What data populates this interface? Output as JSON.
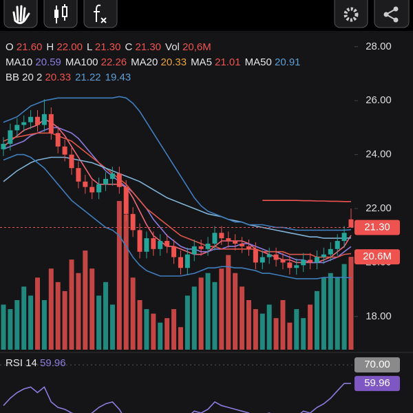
{
  "chart_data": {
    "type": "candlestick",
    "legend_rows": [
      [
        {
          "label": "O",
          "value": "21.60",
          "color": "#ef5350"
        },
        {
          "label": "H",
          "value": "22.00",
          "color": "#ef5350"
        },
        {
          "label": "L",
          "value": "21.30",
          "color": "#ef5350"
        },
        {
          "label": "C",
          "value": "21.30",
          "color": "#ef5350"
        },
        {
          "label": "Vol",
          "value": "20,6M",
          "color": "#ef5350"
        }
      ],
      [
        {
          "label": "MA10",
          "value": "20.59",
          "color": "#8b7de0"
        },
        {
          "label": "MA100",
          "value": "22.26",
          "color": "#ef5350"
        },
        {
          "label": "MA20",
          "value": "20.33",
          "color": "#e8a33a"
        },
        {
          "label": "MA5",
          "value": "21.01",
          "color": "#ef5350"
        },
        {
          "label": "MA50",
          "value": "20.91",
          "color": "#5a9fd6"
        }
      ],
      [
        {
          "label": "BB 20 2",
          "value": "20.33",
          "color": "#ef5350"
        },
        {
          "value": "21.22",
          "color": "#5a9fd6"
        },
        {
          "value": "19.43",
          "color": "#5a9fd6"
        }
      ]
    ],
    "up_color": "#26a69a",
    "down_color": "#ef5350",
    "candles": {
      "open": [
        24.2,
        24.4,
        24.9,
        25.1,
        25.2,
        25.4,
        25.1,
        25.5,
        24.8,
        24.3,
        24.0,
        23.5,
        23.0,
        22.8,
        22.6,
        22.9,
        23.1,
        23.3,
        22.8,
        21.8,
        21.2,
        20.4,
        20.9,
        20.5,
        20.8,
        20.6,
        20.2,
        19.8,
        20.3,
        20.6,
        20.5,
        20.7,
        21.1,
        20.9,
        20.8,
        20.7,
        20.6,
        20.5,
        20.0,
        20.2,
        20.3,
        20.1,
        20.0,
        19.8,
        19.9,
        20.1,
        20.0,
        20.2,
        20.3,
        20.5,
        20.8,
        21.6
      ],
      "high": [
        24.65,
        25.15,
        25.35,
        25.45,
        25.65,
        25.65,
        26.05,
        25.75,
        25.05,
        24.55,
        24.25,
        23.75,
        23.25,
        23.05,
        23.15,
        23.35,
        23.55,
        23.55,
        23.05,
        22.05,
        21.45,
        21.15,
        21.15,
        21.05,
        21.05,
        20.85,
        20.45,
        20.55,
        20.85,
        20.85,
        20.95,
        21.35,
        21.35,
        21.15,
        21.05,
        20.95,
        20.85,
        20.75,
        20.45,
        20.55,
        20.55,
        20.35,
        20.25,
        20.15,
        20.35,
        20.35,
        20.45,
        20.55,
        20.75,
        21.05,
        21.35,
        22.0
      ],
      "low": [
        23.95,
        24.15,
        24.65,
        24.85,
        24.95,
        24.85,
        24.85,
        24.55,
        24.05,
        23.75,
        23.25,
        22.75,
        22.55,
        22.35,
        22.35,
        22.65,
        22.85,
        22.55,
        21.55,
        20.95,
        20.15,
        20.15,
        20.25,
        20.25,
        20.35,
        19.95,
        19.55,
        19.55,
        20.05,
        20.25,
        20.25,
        20.45,
        20.65,
        20.55,
        20.45,
        20.35,
        20.25,
        19.75,
        19.75,
        19.95,
        19.85,
        19.75,
        19.55,
        19.55,
        19.65,
        19.75,
        19.75,
        19.95,
        20.05,
        20.25,
        20.55,
        21.3
      ],
      "close": [
        24.4,
        24.9,
        25.1,
        25.2,
        25.4,
        25.1,
        25.5,
        24.8,
        24.3,
        24.0,
        23.5,
        23.0,
        22.8,
        22.6,
        22.9,
        23.1,
        23.3,
        22.8,
        21.8,
        21.2,
        20.4,
        20.9,
        20.5,
        20.8,
        20.6,
        20.2,
        19.8,
        20.3,
        20.6,
        20.5,
        20.7,
        21.1,
        20.9,
        20.8,
        20.7,
        20.6,
        20.5,
        20.0,
        20.2,
        20.3,
        20.1,
        20.0,
        19.8,
        19.9,
        20.1,
        20.0,
        20.2,
        20.3,
        20.5,
        20.8,
        21.1,
        21.3
      ]
    },
    "volume": [
      10,
      9,
      11,
      14,
      12,
      16,
      11,
      18,
      15,
      13,
      20,
      17,
      22,
      18,
      12,
      15,
      10,
      33,
      30,
      16,
      11,
      9,
      8,
      6,
      7,
      9,
      5,
      12,
      14,
      16,
      17,
      15,
      18,
      21,
      17,
      14,
      11,
      9,
      8,
      10,
      7,
      11,
      6,
      9,
      7,
      10,
      13,
      16,
      17,
      16,
      19,
      20.6
    ],
    "volume_lim": [
      0,
      33.3
    ],
    "series": [
      {
        "color": "#f06878",
        "values": [
          24.3,
          24.5,
          24.7,
          24.9,
          25.0,
          25.1,
          25.3,
          25.2,
          25.0,
          24.7,
          24.3,
          23.9,
          23.5,
          23.1,
          22.9,
          22.9,
          22.9,
          22.9,
          22.8,
          22.4,
          21.9,
          21.4,
          21.0,
          20.8,
          20.6,
          20.6,
          20.5,
          20.4,
          20.3,
          20.3,
          20.4,
          20.6,
          20.8,
          20.8,
          20.8,
          20.8,
          20.7,
          20.5,
          20.4,
          20.3,
          20.2,
          20.1,
          20.1,
          20.0,
          20.0,
          20.0,
          20.0,
          20.1,
          20.2,
          20.4,
          20.6,
          21.01
        ]
      },
      {
        "color": "#8b7de0",
        "values": [
          24.2,
          24.3,
          24.4,
          24.5,
          24.7,
          24.8,
          24.9,
          25.0,
          25.0,
          24.9,
          24.8,
          24.6,
          24.3,
          24.0,
          23.7,
          23.4,
          23.2,
          23.0,
          22.8,
          22.6,
          22.3,
          22.0,
          21.6,
          21.3,
          21.0,
          20.8,
          20.6,
          20.5,
          20.5,
          20.4,
          20.4,
          20.5,
          20.5,
          20.6,
          20.6,
          20.7,
          20.7,
          20.6,
          20.5,
          20.4,
          20.4,
          20.3,
          20.2,
          20.1,
          20.1,
          20.0,
          20.0,
          20.0,
          20.1,
          20.2,
          20.4,
          20.59
        ]
      },
      {
        "color": "#e0574a",
        "values": [
          24.5,
          24.6,
          24.65,
          24.7,
          24.75,
          24.8,
          24.8,
          24.8,
          24.7,
          24.6,
          24.5,
          24.3,
          24.1,
          23.9,
          23.7,
          23.5,
          23.3,
          23.1,
          22.9,
          22.6,
          22.3,
          22.0,
          21.8,
          21.6,
          21.4,
          21.2,
          21.0,
          20.9,
          20.8,
          20.7,
          20.6,
          20.6,
          20.5,
          20.5,
          20.5,
          20.5,
          20.5,
          20.5,
          20.4,
          20.4,
          20.4,
          20.4,
          20.3,
          20.3,
          20.3,
          20.3,
          20.2,
          20.2,
          20.2,
          20.2,
          20.3,
          20.33
        ]
      },
      {
        "color": "#7fb3d8",
        "values": [
          23.0,
          23.2,
          23.4,
          23.55,
          23.7,
          23.8,
          23.85,
          23.9,
          23.9,
          23.9,
          23.85,
          23.8,
          23.75,
          23.7,
          23.6,
          23.5,
          23.4,
          23.3,
          23.2,
          23.1,
          23.0,
          22.85,
          22.7,
          22.55,
          22.4,
          22.3,
          22.2,
          22.1,
          22.0,
          21.9,
          21.8,
          21.75,
          21.7,
          21.6,
          21.55,
          21.5,
          21.4,
          21.35,
          21.3,
          21.25,
          21.2,
          21.15,
          21.1,
          21.05,
          21.0,
          20.95,
          20.95,
          20.9,
          20.9,
          20.9,
          20.9,
          20.91
        ]
      },
      {
        "color": "#ef5350",
        "values": [
          null,
          null,
          null,
          null,
          null,
          null,
          null,
          null,
          null,
          null,
          null,
          null,
          null,
          null,
          null,
          null,
          null,
          null,
          null,
          null,
          null,
          null,
          null,
          null,
          null,
          null,
          null,
          null,
          null,
          null,
          null,
          null,
          null,
          null,
          null,
          null,
          null,
          null,
          22.3,
          22.3,
          22.3,
          22.3,
          22.3,
          22.3,
          22.29,
          22.29,
          22.28,
          22.28,
          22.27,
          22.27,
          22.26,
          22.26
        ]
      },
      {
        "color": "#3f7fc0",
        "values": [
          25.2,
          25.3,
          25.4,
          25.6,
          25.8,
          25.9,
          26.0,
          26.05,
          26.1,
          26.1,
          26.1,
          26.1,
          26.1,
          26.1,
          26.1,
          26.1,
          26.1,
          26.15,
          26.1,
          25.9,
          25.6,
          25.2,
          24.8,
          24.4,
          24.0,
          23.6,
          23.2,
          22.8,
          22.4,
          22.1,
          21.9,
          21.8,
          21.7,
          21.6,
          21.5,
          21.5,
          21.4,
          21.4,
          21.4,
          21.35,
          21.3,
          21.3,
          21.25,
          21.2,
          21.2,
          21.2,
          21.2,
          21.2,
          21.2,
          21.2,
          21.2,
          21.22
        ]
      },
      {
        "color": "#3f7fc0",
        "values": [
          23.8,
          23.9,
          24.0,
          24.0,
          23.9,
          23.7,
          23.5,
          23.2,
          22.9,
          22.6,
          22.3,
          22.1,
          21.9,
          21.7,
          21.5,
          21.3,
          21.2,
          21.0,
          20.6,
          20.2,
          19.9,
          19.7,
          19.6,
          19.5,
          19.5,
          19.5,
          19.5,
          19.55,
          19.6,
          19.7,
          19.8,
          19.8,
          19.85,
          19.85,
          19.8,
          19.8,
          19.75,
          19.7,
          19.6,
          19.6,
          19.55,
          19.5,
          19.45,
          19.4,
          19.4,
          19.4,
          19.4,
          19.45,
          19.45,
          19.45,
          19.45,
          19.43
        ]
      }
    ],
    "ylim": [
      16.77,
      28.71
    ],
    "yticks": [
      {
        "value": 28,
        "label": "28.00"
      },
      {
        "value": 26,
        "label": "26.00"
      },
      {
        "value": 24,
        "label": "24.00"
      },
      {
        "value": 22,
        "label": "22.00"
      },
      {
        "value": 20,
        "label": "20.00"
      },
      {
        "value": 18,
        "label": "18.00"
      }
    ],
    "last_price_label": {
      "value": 21.3,
      "label": "21.30"
    },
    "last_volume_label": {
      "value": 20.6,
      "label": "20.6M"
    },
    "rsi_title": "RSI 14",
    "rsi_value_text": "59.96",
    "rsi_color": "#8b7de0",
    "rsi": [
      48,
      52,
      55,
      57,
      58,
      55,
      58,
      50,
      47,
      46,
      44,
      43,
      42,
      44,
      47,
      49,
      50,
      46,
      40,
      37,
      35,
      40,
      38,
      42,
      40,
      38,
      36,
      42,
      45,
      44,
      46,
      50,
      48,
      47,
      46,
      45,
      44,
      40,
      43,
      44,
      42,
      41,
      40,
      42,
      45,
      44,
      47,
      49,
      52,
      56,
      60,
      59.96
    ],
    "rsi_ylim": [
      44,
      75.6
    ],
    "rsi_level": {
      "value": 70,
      "label": "70.00"
    },
    "rsi_last_label": {
      "value": 59.96,
      "label": "59.96"
    }
  }
}
